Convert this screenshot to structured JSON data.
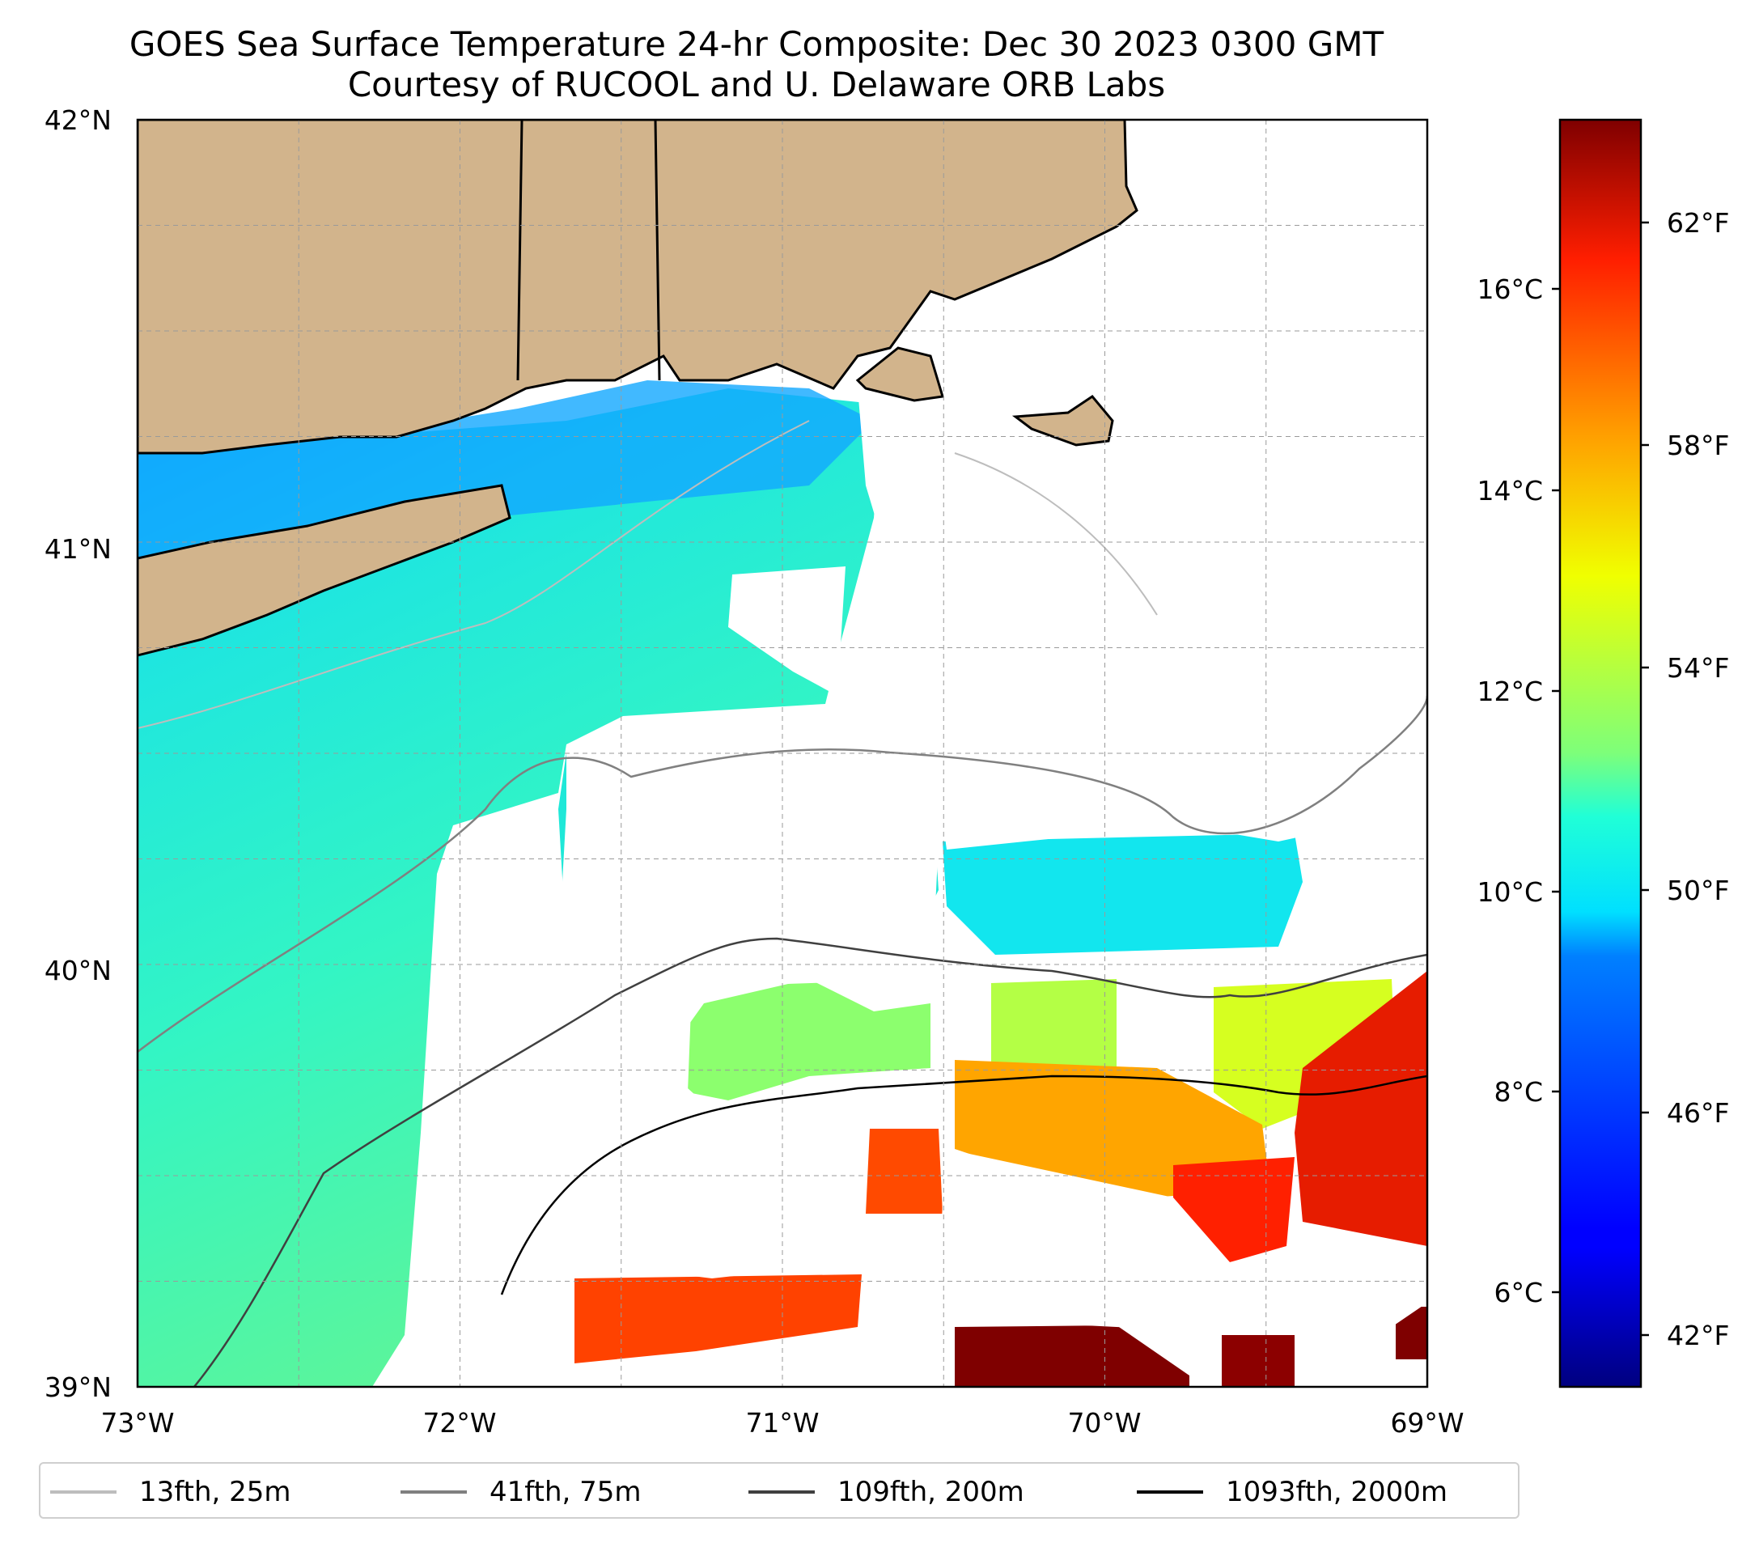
{
  "title": {
    "line1": "GOES Sea Surface Temperature 24-hr Composite: Dec 30 2023 0300 GMT",
    "line2": "Courtesy of RUCOOL and U. Delaware ORB Labs"
  },
  "map": {
    "lon_range": [
      -73,
      -69
    ],
    "lat_range": [
      39,
      42
    ],
    "lon_ticks": [
      "73°W",
      "72°W",
      "71°W",
      "70°W",
      "69°W"
    ],
    "lat_ticks": [
      "42°N",
      "41°N",
      "40°N",
      "39°N"
    ],
    "gridlines": true,
    "land_color": "#d2b48c",
    "colormap": "jet"
  },
  "colorbar": {
    "celsius_range": [
      5.1,
      17.4
    ],
    "celsius_labels": [
      "16°C",
      "14°C",
      "12°C",
      "10°C",
      "8°C",
      "6°C"
    ],
    "fahrenheit_labels": [
      "62°F",
      "58°F",
      "54°F",
      "50°F",
      "46°F",
      "42°F"
    ]
  },
  "legend": {
    "items": [
      {
        "label": "13fth, 25m",
        "color": "#bdbdbd"
      },
      {
        "label": "41fth, 75m",
        "color": "#808080"
      },
      {
        "label": "109fth, 200m",
        "color": "#404040"
      },
      {
        "label": "1093fth, 2000m",
        "color": "#000000"
      }
    ]
  }
}
